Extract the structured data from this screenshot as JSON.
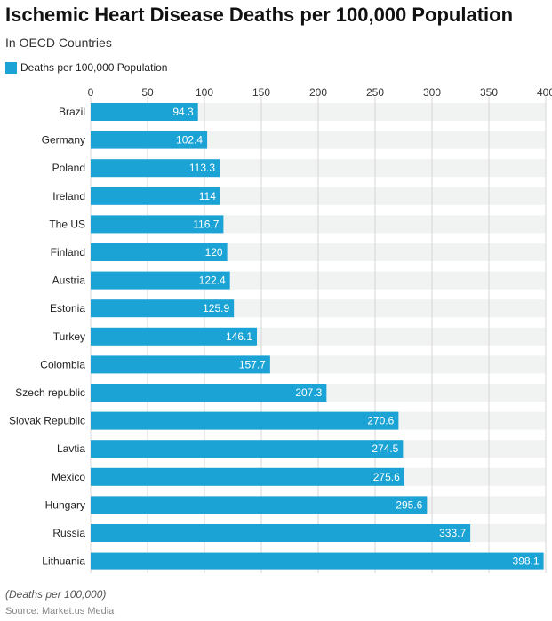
{
  "title": "Ischemic Heart Disease Deaths per 100,000 Population",
  "subtitle": "In OECD Countries",
  "footnote": "(Deaths per 100,000)",
  "source": "Source: Market.us Media",
  "colors": {
    "bar": "#1aa3d4",
    "track": "#f1f2f2",
    "grid": "#d7d7d7"
  },
  "chart_data": {
    "type": "bar",
    "orientation": "horizontal",
    "title": "Ischemic Heart Disease Deaths per 100,000 Population",
    "subtitle": "In OECD Countries",
    "xlabel": "",
    "ylabel": "",
    "xlim": [
      0,
      400
    ],
    "ticks": [
      0,
      50,
      100,
      150,
      200,
      250,
      300,
      350,
      400
    ],
    "legend": {
      "placement": "top-left",
      "entries": [
        "Deaths per 100,000 Population"
      ]
    },
    "categories": [
      "Brazil",
      "Germany",
      "Poland",
      "Ireland",
      "The US",
      "Finland",
      "Austria",
      "Estonia",
      "Turkey",
      "Colombia",
      "Szech republic",
      "Slovak Republic",
      "Lavtia",
      "Mexico",
      "Hungary",
      "Russia",
      "Lithuania"
    ],
    "series": [
      {
        "name": "Deaths per 100,000 Population",
        "values": [
          94.3,
          102.4,
          113.3,
          114,
          116.7,
          120,
          122.4,
          125.9,
          146.1,
          157.7,
          207.3,
          270.6,
          274.5,
          275.6,
          295.6,
          333.7,
          398.1
        ],
        "labels": [
          "94.3",
          "102.4",
          "113.3",
          "114",
          "116.7",
          "120",
          "122.4",
          "125.9",
          "146.1",
          "157.7",
          "207.3",
          "270.6",
          "274.5",
          "275.6",
          "295.6",
          "333.7",
          "398.1"
        ]
      }
    ]
  }
}
